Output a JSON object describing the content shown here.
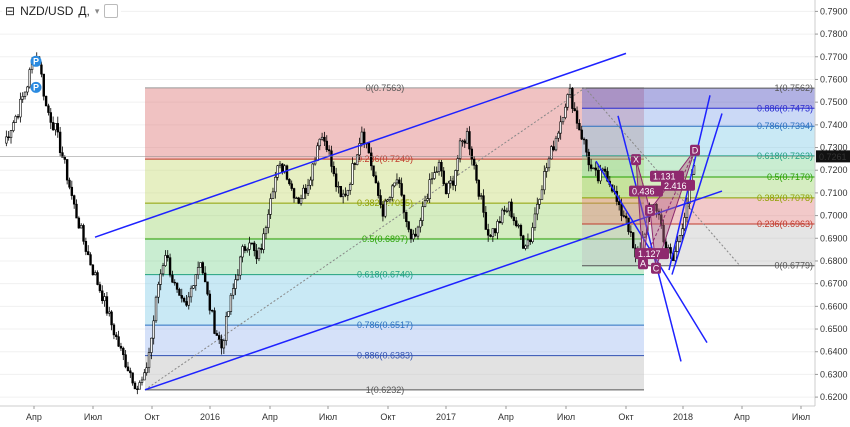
{
  "header": {
    "symbol": "NZD/USD",
    "interval": "Д,",
    "dropdown_glyph": "▾"
  },
  "colors": {
    "channel": "#1e22ff",
    "pattern": "#8e2a6e",
    "candles": "#000000",
    "price_tag_bg": "#111111"
  },
  "chart_data": {
    "type": "candlestick",
    "y_ticks": [
      "0.7900",
      "0.7800",
      "0.7700",
      "0.7600",
      "0.7500",
      "0.7400",
      "0.7300",
      "0.7200",
      "0.7100",
      "0.7000",
      "0.6900",
      "0.6800",
      "0.6700",
      "0.6600",
      "0.6500",
      "0.6400",
      "0.6300",
      "0.6200"
    ],
    "ylim": [
      0.6174,
      0.7937
    ],
    "x_ticks": [
      "Апр",
      "Июл",
      "Окт",
      "2016",
      "Апр",
      "Июл",
      "Окт",
      "2017",
      "Апр",
      "Июл",
      "Окт",
      "2018",
      "Апр",
      "Июл"
    ],
    "last_price": "0.7261",
    "close_path": [
      [
        0,
        0.732
      ],
      [
        12,
        0.746
      ],
      [
        20,
        0.758
      ],
      [
        26,
        0.772
      ],
      [
        30,
        0.768
      ],
      [
        36,
        0.748
      ],
      [
        44,
        0.738
      ],
      [
        52,
        0.722
      ],
      [
        60,
        0.704
      ],
      [
        68,
        0.689
      ],
      [
        76,
        0.676
      ],
      [
        84,
        0.665
      ],
      [
        92,
        0.652
      ],
      [
        100,
        0.64
      ],
      [
        108,
        0.631
      ],
      [
        114,
        0.624
      ],
      [
        120,
        0.628
      ],
      [
        126,
        0.646
      ],
      [
        132,
        0.67
      ],
      [
        138,
        0.684
      ],
      [
        144,
        0.672
      ],
      [
        150,
        0.662
      ],
      [
        156,
        0.659
      ],
      [
        162,
        0.672
      ],
      [
        168,
        0.681
      ],
      [
        174,
        0.664
      ],
      [
        180,
        0.651
      ],
      [
        186,
        0.642
      ],
      [
        192,
        0.658
      ],
      [
        198,
        0.672
      ],
      [
        204,
        0.684
      ],
      [
        210,
        0.69
      ],
      [
        216,
        0.68
      ],
      [
        222,
        0.69
      ],
      [
        228,
        0.71
      ],
      [
        234,
        0.72
      ],
      [
        240,
        0.722
      ],
      [
        246,
        0.712
      ],
      [
        252,
        0.707
      ],
      [
        258,
        0.712
      ],
      [
        264,
        0.722
      ],
      [
        270,
        0.736
      ],
      [
        276,
        0.732
      ],
      [
        282,
        0.717
      ],
      [
        288,
        0.707
      ],
      [
        294,
        0.712
      ],
      [
        300,
        0.725
      ],
      [
        306,
        0.738
      ],
      [
        312,
        0.728
      ],
      [
        318,
        0.712
      ],
      [
        324,
        0.702
      ],
      [
        330,
        0.708
      ],
      [
        336,
        0.716
      ],
      [
        342,
        0.702
      ],
      [
        348,
        0.688
      ],
      [
        354,
        0.692
      ],
      [
        360,
        0.707
      ],
      [
        366,
        0.716
      ],
      [
        372,
        0.722
      ],
      [
        378,
        0.71
      ],
      [
        384,
        0.716
      ],
      [
        390,
        0.73
      ],
      [
        396,
        0.736
      ],
      [
        402,
        0.722
      ],
      [
        408,
        0.706
      ],
      [
        414,
        0.692
      ],
      [
        420,
        0.694
      ],
      [
        426,
        0.7
      ],
      [
        432,
        0.704
      ],
      [
        438,
        0.696
      ],
      [
        444,
        0.688
      ],
      [
        450,
        0.69
      ],
      [
        456,
        0.706
      ],
      [
        462,
        0.718
      ],
      [
        468,
        0.728
      ],
      [
        474,
        0.738
      ],
      [
        480,
        0.75
      ],
      [
        484,
        0.754
      ],
      [
        490,
        0.742
      ],
      [
        496,
        0.732
      ],
      [
        502,
        0.72
      ],
      [
        508,
        0.716
      ],
      [
        514,
        0.72
      ],
      [
        520,
        0.713
      ],
      [
        526,
        0.702
      ],
      [
        532,
        0.7
      ],
      [
        536,
        0.69
      ],
      [
        540,
        0.68
      ],
      [
        546,
        0.69
      ],
      [
        552,
        0.702
      ],
      [
        556,
        0.706
      ],
      [
        560,
        0.7
      ],
      [
        566,
        0.686
      ],
      [
        572,
        0.68
      ],
      [
        578,
        0.692
      ],
      [
        584,
        0.706
      ],
      [
        590,
        0.722
      ]
    ],
    "fib_left": [
      {
        "label": "0(0.7563)",
        "price": 0.7563
      },
      {
        "label": "0.236(0.7249)",
        "price": 0.7249
      },
      {
        "label": "0.382(0.7055)",
        "price": 0.7055
      },
      {
        "label": "0.5(0.6897)",
        "price": 0.6897
      },
      {
        "label": "0.618(0.6740)",
        "price": 0.674
      },
      {
        "label": "0.786(0.6517)",
        "price": 0.6517
      },
      {
        "label": "0.886(0.6383)",
        "price": 0.6383
      },
      {
        "label": "1(0.6232)",
        "price": 0.6232
      }
    ],
    "fib_right": [
      {
        "label": "1(0.7562)",
        "price": 0.7562
      },
      {
        "label": "0.886(0.7473)",
        "price": 0.7473
      },
      {
        "label": "0.786(0.7394)",
        "price": 0.7394
      },
      {
        "label": "0.618(0.7263)",
        "price": 0.7263
      },
      {
        "label": "0.5(0.7170)",
        "price": 0.717
      },
      {
        "label": "0.382(0.7078)",
        "price": 0.7078
      },
      {
        "label": "0.236(0.6963)",
        "price": 0.6963
      },
      {
        "label": "0(0.6779)",
        "price": 0.6779
      }
    ],
    "pattern_points": [
      {
        "name": "X",
        "price": 0.7249
      },
      {
        "name": "A",
        "price": 0.679
      },
      {
        "name": "B",
        "price": 0.7025
      },
      {
        "name": "C",
        "price": 0.677
      },
      {
        "name": "D",
        "price": 0.729
      }
    ],
    "pattern_ratios": [
      "1.131",
      "0.436",
      "2.416",
      "1.127"
    ],
    "markers": [
      "P",
      "P"
    ]
  }
}
